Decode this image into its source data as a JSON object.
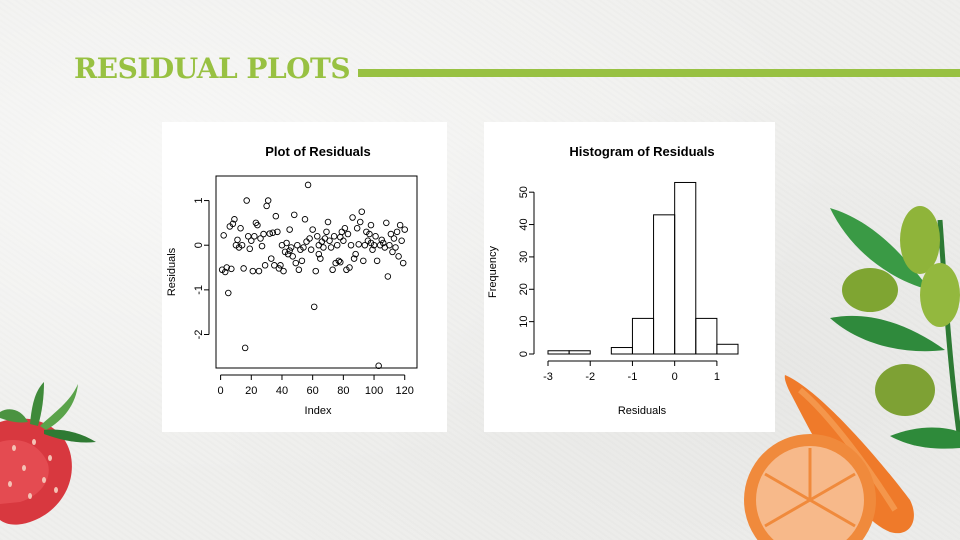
{
  "slide": {
    "title": "RESIDUAL PLOTS",
    "accent_color": "#98c142"
  },
  "chart_data": [
    {
      "type": "scatter",
      "title": "Plot of Residuals",
      "xlabel": "Index",
      "ylabel": "Residuals",
      "xticks": [
        0,
        20,
        40,
        60,
        80,
        100,
        120
      ],
      "yticks": [
        -2,
        -1,
        0,
        1
      ],
      "xlim": [
        -3,
        128
      ],
      "ylim": [
        -2.75,
        1.55
      ],
      "marker": "open-circle",
      "points": [
        [
          1,
          -0.55
        ],
        [
          2,
          0.22
        ],
        [
          3,
          -0.6
        ],
        [
          4,
          -0.5
        ],
        [
          5,
          -1.07
        ],
        [
          6,
          0.42
        ],
        [
          7,
          -0.53
        ],
        [
          8,
          0.48
        ],
        [
          9,
          0.58
        ],
        [
          10,
          0.0
        ],
        [
          11,
          0.12
        ],
        [
          12,
          -0.05
        ],
        [
          13,
          0.38
        ],
        [
          14,
          0.0
        ],
        [
          15,
          -0.52
        ],
        [
          16,
          -2.3
        ],
        [
          17,
          1.0
        ],
        [
          18,
          0.2
        ],
        [
          19,
          -0.08
        ],
        [
          20,
          0.1
        ],
        [
          21,
          -0.58
        ],
        [
          22,
          0.2
        ],
        [
          23,
          0.5
        ],
        [
          24,
          0.45
        ],
        [
          25,
          -0.58
        ],
        [
          26,
          0.15
        ],
        [
          27,
          -0.02
        ],
        [
          28,
          0.25
        ],
        [
          29,
          -0.45
        ],
        [
          30,
          0.88
        ],
        [
          31,
          1.0
        ],
        [
          32,
          0.26
        ],
        [
          33,
          -0.3
        ],
        [
          34,
          0.28
        ],
        [
          35,
          -0.45
        ],
        [
          36,
          0.65
        ],
        [
          37,
          0.3
        ],
        [
          38,
          -0.52
        ],
        [
          39,
          -0.45
        ],
        [
          40,
          0.0
        ],
        [
          41,
          -0.58
        ],
        [
          42,
          -0.15
        ],
        [
          43,
          0.05
        ],
        [
          44,
          -0.2
        ],
        [
          45,
          0.35
        ],
        [
          46,
          -0.05
        ],
        [
          47,
          -0.25
        ],
        [
          48,
          0.68
        ],
        [
          49,
          -0.4
        ],
        [
          50,
          0.0
        ],
        [
          51,
          -0.55
        ],
        [
          52,
          -0.1
        ],
        [
          53,
          -0.35
        ],
        [
          54,
          -0.05
        ],
        [
          55,
          0.58
        ],
        [
          56,
          0.08
        ],
        [
          57,
          1.35
        ],
        [
          58,
          0.15
        ],
        [
          59,
          -0.1
        ],
        [
          60,
          0.35
        ],
        [
          61,
          -1.38
        ],
        [
          62,
          -0.58
        ],
        [
          63,
          0.2
        ],
        [
          64,
          -0.2
        ],
        [
          65,
          -0.3
        ],
        [
          66,
          0.08
        ],
        [
          67,
          -0.05
        ],
        [
          68,
          0.15
        ],
        [
          69,
          0.3
        ],
        [
          70,
          0.52
        ],
        [
          71,
          0.1
        ],
        [
          72,
          -0.05
        ],
        [
          73,
          -0.55
        ],
        [
          74,
          0.2
        ],
        [
          75,
          -0.4
        ],
        [
          76,
          0.0
        ],
        [
          77,
          -0.35
        ],
        [
          78,
          0.18
        ],
        [
          79,
          0.3
        ],
        [
          80,
          0.1
        ],
        [
          81,
          0.38
        ],
        [
          82,
          -0.55
        ],
        [
          83,
          0.25
        ],
        [
          84,
          -0.5
        ],
        [
          85,
          0.0
        ],
        [
          86,
          0.62
        ],
        [
          87,
          -0.3
        ],
        [
          88,
          -0.2
        ],
        [
          89,
          0.38
        ],
        [
          90,
          0.02
        ],
        [
          91,
          0.52
        ],
        [
          92,
          0.75
        ],
        [
          93,
          -0.35
        ],
        [
          94,
          0.0
        ],
        [
          95,
          0.3
        ],
        [
          96,
          0.1
        ],
        [
          97,
          0.25
        ],
        [
          98,
          0.05
        ],
        [
          99,
          -0.1
        ],
        [
          100,
          0.0
        ],
        [
          101,
          0.2
        ],
        [
          102,
          -0.35
        ],
        [
          103,
          -2.7
        ],
        [
          104,
          0.0
        ],
        [
          105,
          0.12
        ],
        [
          106,
          0.05
        ],
        [
          107,
          -0.05
        ],
        [
          108,
          0.5
        ],
        [
          109,
          -0.7
        ],
        [
          110,
          0.0
        ],
        [
          111,
          0.25
        ],
        [
          112,
          -0.15
        ],
        [
          113,
          0.15
        ],
        [
          114,
          -0.05
        ],
        [
          115,
          0.3
        ],
        [
          116,
          -0.25
        ],
        [
          117,
          0.45
        ],
        [
          118,
          0.1
        ],
        [
          119,
          -0.4
        ],
        [
          120,
          0.35
        ],
        [
          64,
          0.0
        ],
        [
          98,
          0.45
        ],
        [
          45,
          -0.12
        ],
        [
          78,
          -0.38
        ]
      ]
    },
    {
      "type": "bar",
      "subtype": "histogram",
      "title": "Histogram of Residuals",
      "xlabel": "Residuals",
      "ylabel": "Frequency",
      "xticks": [
        -3,
        -2,
        -1,
        0,
        1
      ],
      "yticks": [
        0,
        10,
        20,
        30,
        40,
        50
      ],
      "xlim": [
        -3.0,
        1.5
      ],
      "ylim": [
        0,
        55
      ],
      "bins": [
        {
          "from": -3.0,
          "to": -2.5,
          "count": 1
        },
        {
          "from": -2.5,
          "to": -2.0,
          "count": 1
        },
        {
          "from": -2.0,
          "to": -1.5,
          "count": 0
        },
        {
          "from": -1.5,
          "to": -1.0,
          "count": 2
        },
        {
          "from": -1.0,
          "to": -0.5,
          "count": 11
        },
        {
          "from": -0.5,
          "to": 0.0,
          "count": 43
        },
        {
          "from": 0.0,
          "to": 0.5,
          "count": 53
        },
        {
          "from": 0.5,
          "to": 1.0,
          "count": 11
        },
        {
          "from": 1.0,
          "to": 1.5,
          "count": 3
        }
      ]
    }
  ]
}
